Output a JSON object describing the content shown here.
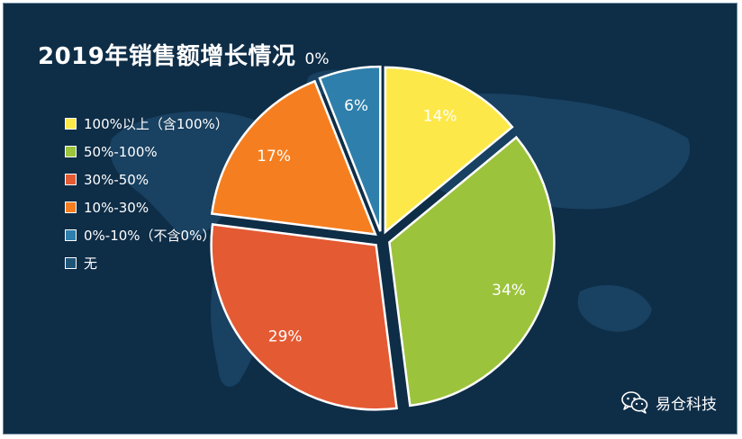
{
  "chart_data": {
    "type": "pie",
    "title": "2019年销售额增长情况",
    "slices": [
      {
        "label": "100%以上（含100%）",
        "value": 14,
        "data_label": "14%",
        "color": "#fde84a"
      },
      {
        "label": "50%-100%",
        "value": 34,
        "data_label": "34%",
        "color": "#9cc33c"
      },
      {
        "label": "30%-50%",
        "value": 29,
        "data_label": "29%",
        "color": "#e45a33"
      },
      {
        "label": "10%-30%",
        "value": 17,
        "data_label": "17%",
        "color": "#f57f20"
      },
      {
        "label": "0%-10%（不含0%）",
        "value": 6,
        "data_label": "6%",
        "color": "#2e7fab"
      },
      {
        "label": "无",
        "value": 0,
        "data_label": "0%",
        "color": "#1e5577"
      }
    ],
    "legend_position": "left",
    "start_angle": "12 o'clock, clockwise"
  },
  "watermark": {
    "text": "易仓科技",
    "icon": "wechat-icon"
  },
  "colors": {
    "background": "#0e2d47",
    "map": "#1b4566",
    "slice_border": "#ffffff"
  }
}
